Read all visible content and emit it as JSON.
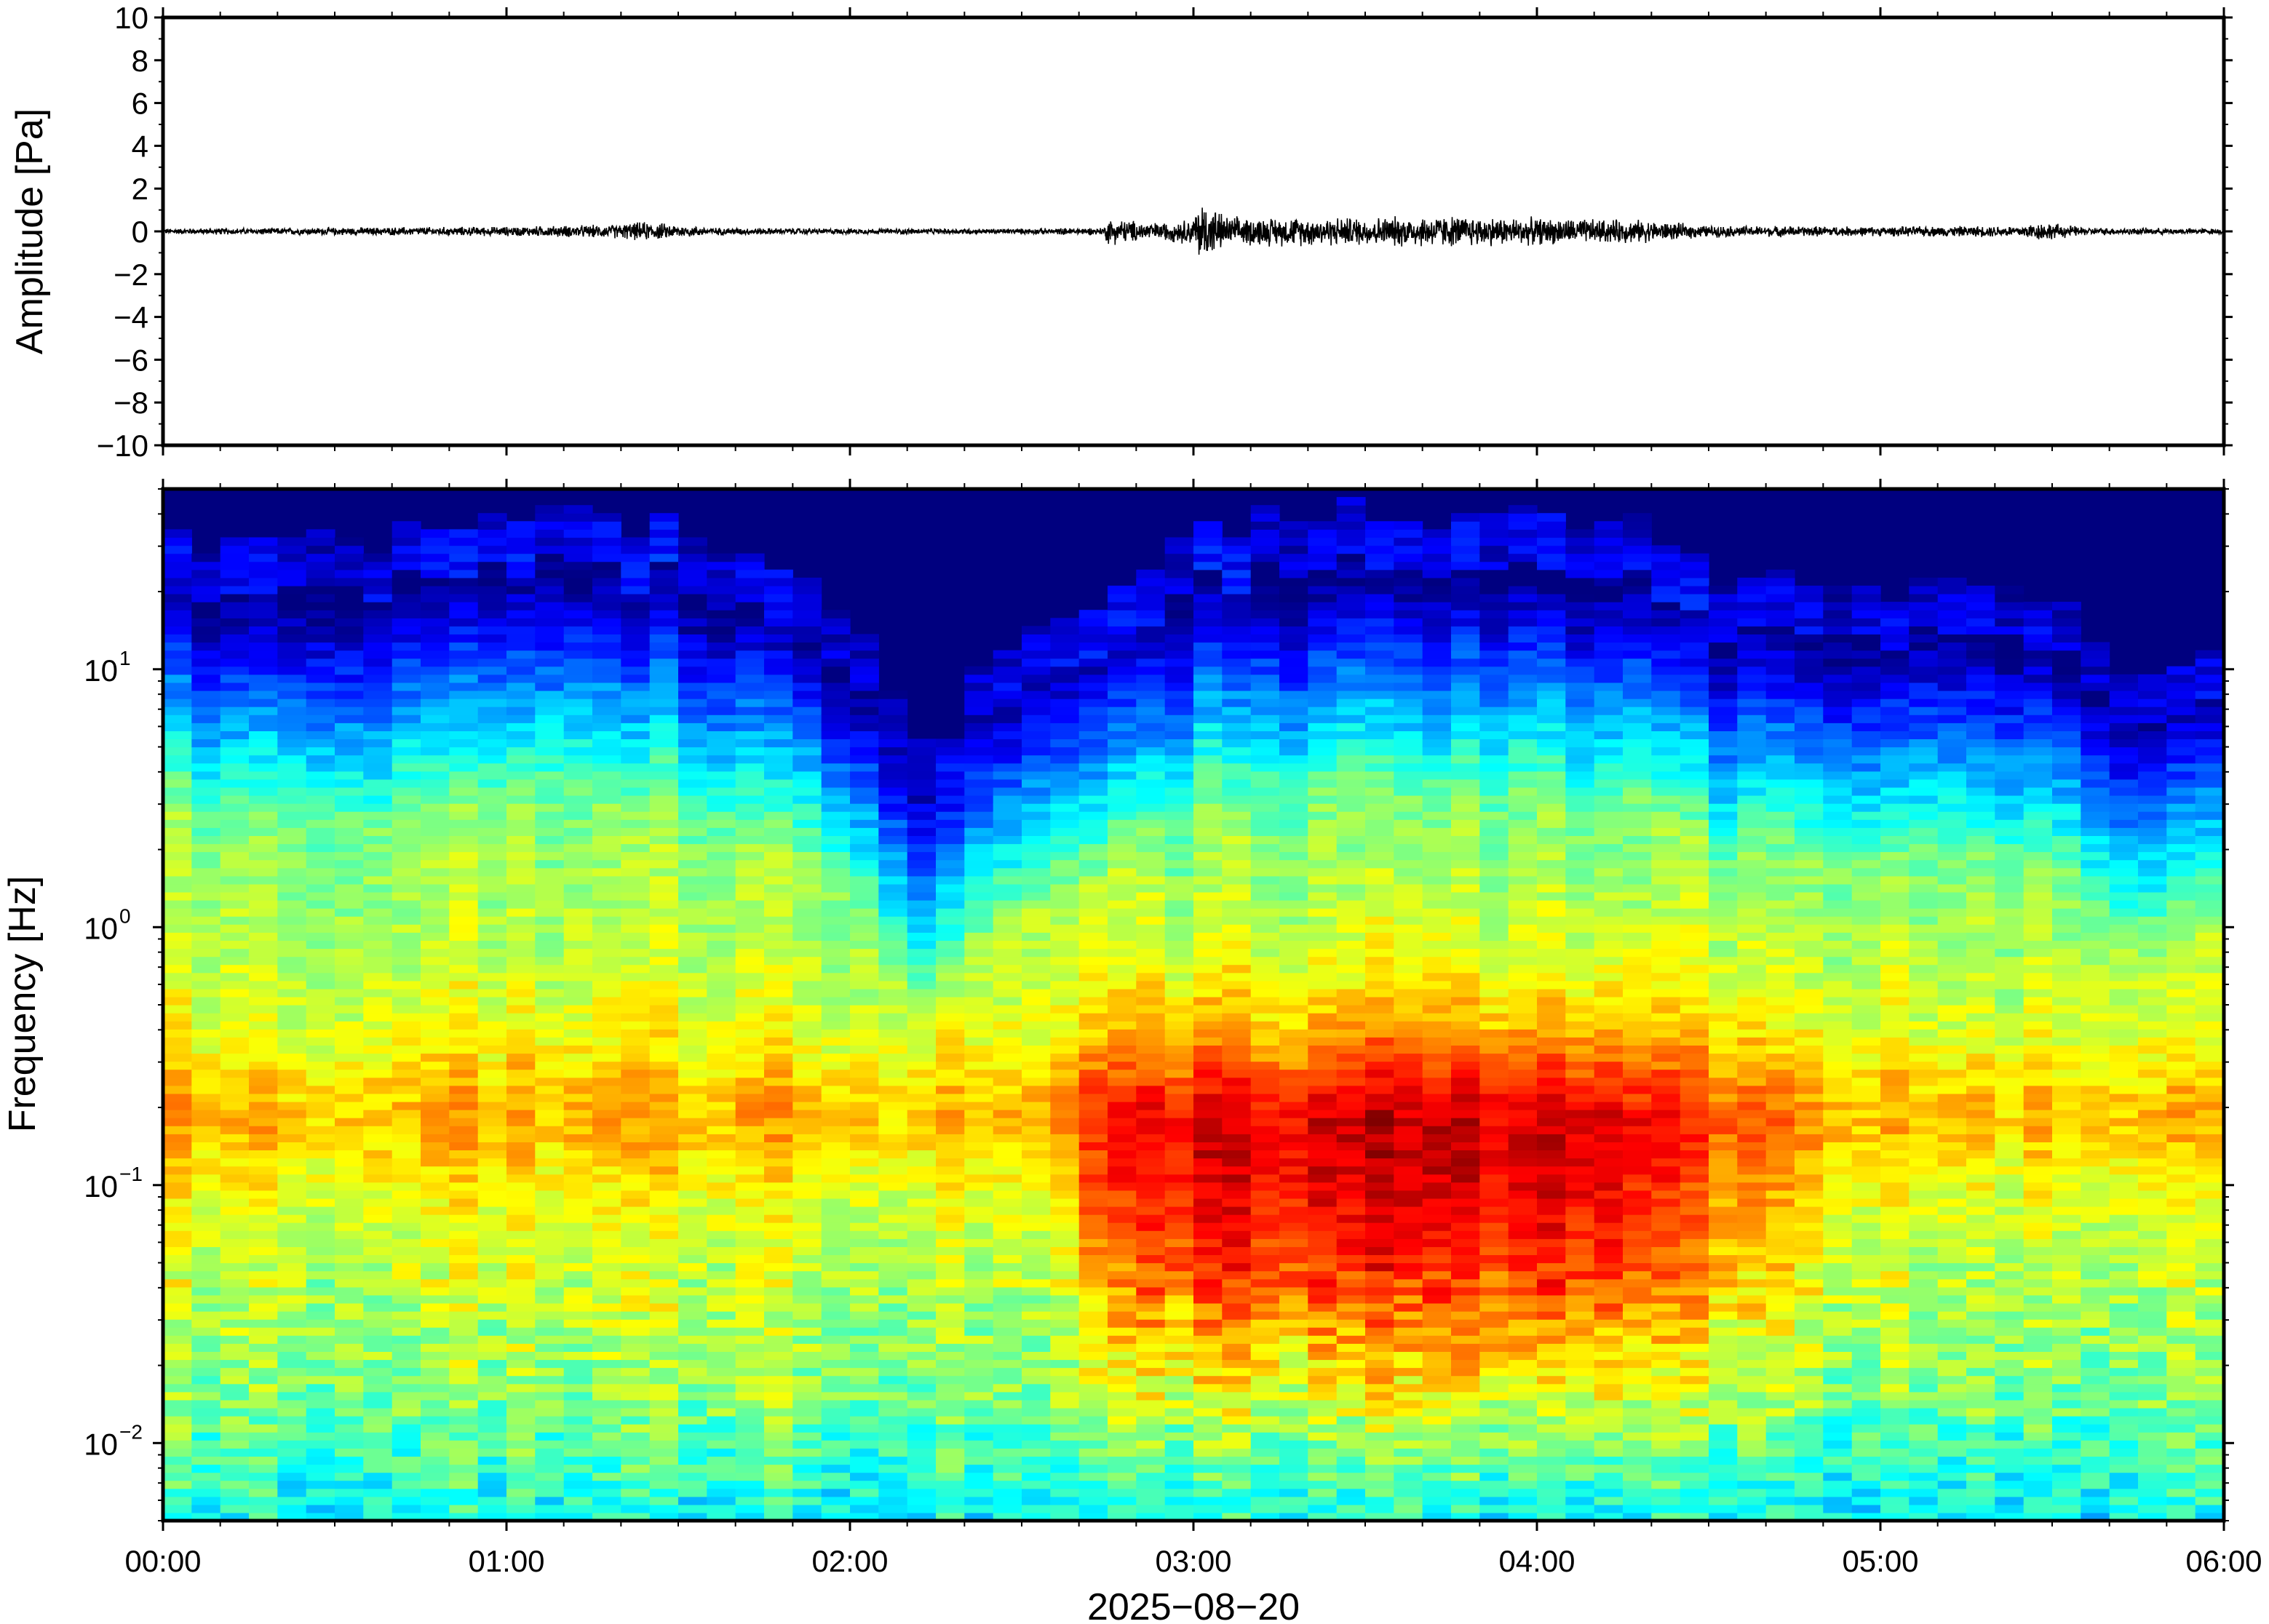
{
  "chart_data": [
    {
      "type": "line",
      "ylabel": "Amplitude [Pa]",
      "ylim": [
        -10,
        10
      ],
      "yticks": [
        10,
        8,
        6,
        4,
        2,
        0,
        -2,
        -4,
        -6,
        -8,
        -10
      ],
      "ytick_labels": [
        "10",
        "8",
        "6",
        "4",
        "2",
        "0",
        "−2",
        "−4",
        "−6",
        "−8",
        "−10"
      ],
      "xlim_hours": [
        0,
        6
      ],
      "envelope": {
        "time_hours": [
          0.0,
          0.5,
          1.0,
          1.3,
          1.4,
          1.6,
          2.0,
          2.5,
          2.74,
          2.75,
          2.9,
          3.0,
          3.02,
          3.1,
          3.5,
          3.7,
          4.0,
          4.3,
          4.5,
          5.0,
          5.4,
          5.47,
          5.6,
          6.0
        ],
        "amplitude_pa": [
          0.15,
          0.2,
          0.25,
          0.35,
          0.5,
          0.2,
          0.15,
          0.15,
          0.2,
          0.7,
          0.45,
          0.7,
          1.7,
          0.75,
          0.75,
          0.85,
          0.7,
          0.6,
          0.3,
          0.25,
          0.3,
          0.5,
          0.2,
          0.15
        ]
      },
      "grid": false
    },
    {
      "type": "heatmap",
      "ylabel": "Frequency [Hz]",
      "xlabel": "2025−08−20",
      "yscale": "log",
      "ylim_hz": [
        0.005,
        50
      ],
      "yticks": [
        {
          "base": "10",
          "exp": "1",
          "value": 10
        },
        {
          "base": "10",
          "exp": "0",
          "value": 1
        },
        {
          "base": "10",
          "exp": "−1",
          "value": 0.1
        },
        {
          "base": "10",
          "exp": "−2",
          "value": 0.01
        }
      ],
      "xticks": [
        "00:00",
        "01:00",
        "02:00",
        "03:00",
        "04:00",
        "05:00",
        "06:00"
      ],
      "xlim_hours": [
        0,
        6
      ],
      "colormap": "jet",
      "colors": {
        "low": "#00007f",
        "mid": "#7fff7f",
        "high": "#ff4000"
      },
      "grid": false
    }
  ]
}
